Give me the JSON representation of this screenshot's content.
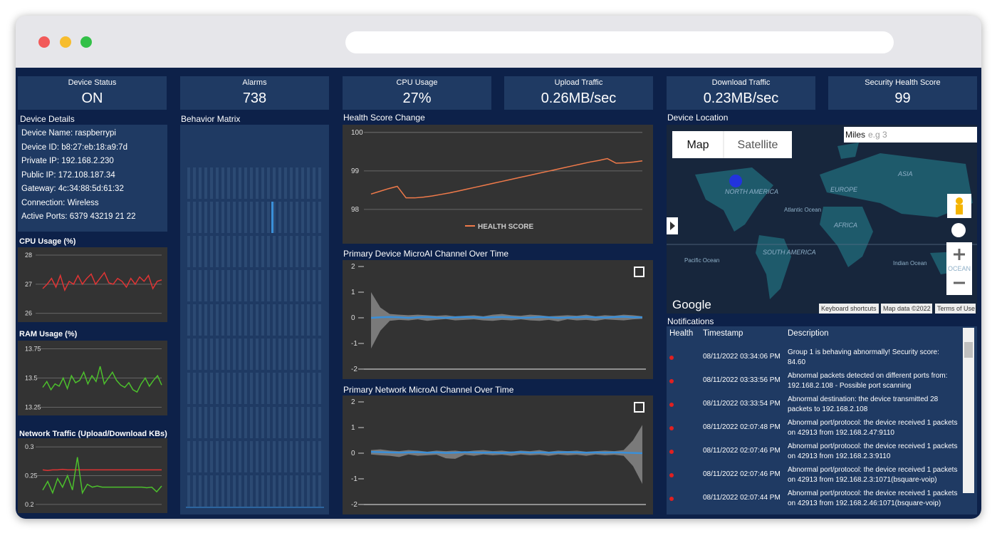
{
  "kpis": [
    {
      "label": "Device Status",
      "value": "ON"
    },
    {
      "label": "Alarms",
      "value": "738"
    },
    {
      "label": "CPU Usage",
      "value": "27%"
    },
    {
      "label": "Upload Traffic",
      "value": "0.26MB/sec"
    },
    {
      "label": "Download Traffic",
      "value": "0.23MB/sec"
    },
    {
      "label": "Security Health Score",
      "value": "99"
    }
  ],
  "device_details": {
    "title": "Device Details",
    "items": [
      "Device Name: raspberrypi",
      "Device ID: b8:27:eb:18:a9:7d",
      "Private IP: 192.168.2.230",
      "Public IP: 172.108.187.34",
      "Gateway: 4c:34:88:5d:61:32",
      "Connection: Wireless",
      "Active Ports: 6379 43219 21 22"
    ]
  },
  "behavior_matrix": {
    "title": "Behavior Matrix"
  },
  "cpu_chart": {
    "type": "line",
    "title": "CPU Usage (%)",
    "ylim": [
      25.7,
      28.27
    ],
    "yticks": [
      26,
      27,
      28
    ],
    "grid": true,
    "series": [
      {
        "color": "#e03434",
        "values": [
          26.85,
          27.0,
          27.2,
          26.9,
          27.3,
          26.8,
          27.1,
          27.0,
          27.3,
          27.0,
          27.2,
          27.35,
          27.0,
          27.2,
          27.4,
          27.05,
          27.0,
          27.2,
          27.1,
          26.9,
          27.2,
          27.0,
          27.25,
          27.1,
          27.3,
          26.85,
          27.1,
          27.15
        ]
      }
    ]
  },
  "ram_chart": {
    "type": "line",
    "title": "RAM Usage (%)",
    "ylim": [
      13.18,
      13.82
    ],
    "yticks": [
      13.25,
      13.5,
      13.75
    ],
    "grid": true,
    "series": [
      {
        "color": "#4cc02c",
        "values": [
          13.42,
          13.47,
          13.4,
          13.45,
          13.43,
          13.5,
          13.41,
          13.52,
          13.46,
          13.48,
          13.55,
          13.45,
          13.52,
          13.47,
          13.6,
          13.45,
          13.5,
          13.55,
          13.48,
          13.44,
          13.42,
          13.46,
          13.4,
          13.38,
          13.45,
          13.5,
          13.43,
          13.48,
          13.52,
          13.44
        ]
      }
    ]
  },
  "network_chart": {
    "type": "line",
    "title": "Network Traffic (Upload/Download KBs)",
    "ylim": [
      0.185,
      0.315
    ],
    "yticks": [
      0.2,
      0.25,
      0.3
    ],
    "grid": true,
    "series": [
      {
        "color": "#e03434",
        "values": [
          0.26,
          0.259,
          0.26,
          0.26,
          0.261,
          0.26,
          0.26,
          0.26,
          0.26,
          0.26,
          0.26,
          0.26,
          0.26,
          0.26,
          0.26,
          0.26,
          0.26,
          0.26,
          0.26,
          0.26,
          0.26,
          0.26,
          0.26,
          0.26,
          0.26
        ]
      },
      {
        "color": "#4cc02c",
        "values": [
          0.225,
          0.24,
          0.22,
          0.245,
          0.23,
          0.25,
          0.225,
          0.282,
          0.22,
          0.235,
          0.23,
          0.232,
          0.23,
          0.23,
          0.23,
          0.23,
          0.23,
          0.23,
          0.23,
          0.23,
          0.23,
          0.229,
          0.23,
          0.222,
          0.232
        ]
      }
    ]
  },
  "health_chart": {
    "type": "line",
    "title": "Health Score Change",
    "ylim": [
      97.11,
      100.2
    ],
    "yticks": [
      98,
      99,
      100
    ],
    "grid": true,
    "series": [
      {
        "name": "HEALTH SCORE",
        "color": "#f07a4a",
        "values": [
          98.4,
          98.47,
          98.54,
          98.6,
          98.3,
          98.3,
          98.32,
          98.35,
          98.39,
          98.43,
          98.48,
          98.53,
          98.58,
          98.63,
          98.68,
          98.73,
          98.78,
          98.83,
          98.88,
          98.93,
          98.98,
          99.03,
          99.08,
          99.13,
          99.18,
          99.23,
          99.27,
          99.32,
          99.2,
          99.21,
          99.23,
          99.26
        ]
      }
    ]
  },
  "microai_device_chart": {
    "type": "band",
    "title": "Primary Device MicroAI Channel Over Time",
    "ylim": [
      -2.39,
      2.25
    ],
    "yticks": [
      2,
      1,
      0,
      -1,
      -2
    ],
    "series": [
      {
        "color": "#3a8fd8",
        "values": [
          0.0,
          0.02,
          0.03,
          0.02,
          0.0,
          0.02,
          0.03,
          0.01,
          0.0,
          0.02,
          0.03,
          0.02,
          0.01,
          0.02,
          0.03,
          0.02,
          0.0,
          0.01,
          0.03,
          0.02,
          0.0,
          0.01,
          0.02,
          0.03,
          0.02,
          0.01,
          0.03,
          0.04,
          0.02,
          0.02
        ]
      }
    ],
    "band": {
      "color": "#8c8c8c",
      "upper": [
        1.0,
        0.4,
        0.15,
        0.12,
        0.1,
        0.12,
        0.1,
        0.08,
        0.1,
        0.06,
        0.08,
        0.1,
        0.06,
        0.12,
        0.15,
        0.1,
        0.08,
        0.12,
        0.1,
        0.06,
        0.08,
        0.1,
        0.08,
        0.12,
        0.06,
        0.1,
        0.08,
        0.12,
        0.1,
        0.06
      ],
      "lower": [
        -1.2,
        -0.5,
        -0.12,
        -0.08,
        -0.1,
        -0.06,
        -0.12,
        -0.08,
        -0.05,
        -0.1,
        -0.08,
        -0.06,
        -0.1,
        -0.12,
        -0.08,
        -0.1,
        -0.06,
        -0.1,
        -0.12,
        -0.08,
        -0.14,
        -0.06,
        -0.1,
        -0.08,
        -0.12,
        -0.06,
        -0.08,
        -0.1,
        -0.06,
        -0.04
      ]
    }
  },
  "microai_network_chart": {
    "type": "band",
    "title": "Primary Network MicroAI Channel Over Time",
    "ylim": [
      -2.39,
      2.25
    ],
    "yticks": [
      2,
      1,
      0,
      -1,
      -2
    ],
    "series": [
      {
        "color": "#3a8fd8",
        "values": [
          0.05,
          0.04,
          0.03,
          0.02,
          0.03,
          0.04,
          0.02,
          0.03,
          0.01,
          0.02,
          0.04,
          0.03,
          0.02,
          0.03,
          0.01,
          0.03,
          0.04,
          0.02,
          0.03,
          0.02,
          0.03,
          0.04,
          0.03,
          0.02,
          0.03,
          0.02,
          0.03,
          0.02,
          0.01,
          0.0
        ]
      }
    ],
    "band": {
      "color": "#8c8c8c",
      "upper": [
        0.12,
        0.15,
        0.1,
        0.08,
        0.12,
        0.1,
        0.06,
        0.1,
        0.08,
        0.1,
        0.06,
        0.1,
        0.12,
        0.08,
        0.1,
        0.06,
        0.1,
        0.08,
        0.12,
        0.06,
        0.1,
        0.08,
        0.1,
        0.06,
        0.08,
        0.1,
        0.08,
        0.12,
        0.5,
        1.1
      ],
      "lower": [
        -0.05,
        -0.08,
        -0.1,
        -0.15,
        -0.05,
        -0.1,
        -0.08,
        -0.06,
        -0.2,
        -0.22,
        -0.06,
        -0.1,
        -0.05,
        -0.08,
        -0.06,
        -0.1,
        -0.05,
        -0.08,
        -0.06,
        -0.1,
        -0.05,
        -0.08,
        -0.06,
        -0.1,
        -0.05,
        -0.08,
        -0.06,
        -0.1,
        -0.5,
        -1.2
      ]
    }
  },
  "device_location": {
    "title": "Device Location",
    "map_button": "Map",
    "satellite_button": "Satellite",
    "miles_label": "Miles",
    "miles_placeholder": "e.g 3",
    "labels": [
      "NORTH AMERICA",
      "EUROPE",
      "ASIA",
      "AFRICA",
      "SOUTH AMERICA",
      "Atlantic Ocean",
      "Pacific Ocean",
      "Indian Ocean",
      "OCEAN"
    ],
    "logo": "Google",
    "footer": [
      "Keyboard shortcuts",
      "Map data ©2022",
      "Terms of Use"
    ]
  },
  "notifications": {
    "title": "Notifications",
    "headers": [
      "Health",
      "Timestamp",
      "Description"
    ],
    "rows": [
      [
        "08/11/2022 03:34:06 PM",
        "Group 1 is behaving abnormally! Security score: 84.60"
      ],
      [
        "08/11/2022 03:33:56 PM",
        "Abnormal packets detected on different ports from: 192.168.2.108 - Possible port scanning"
      ],
      [
        "08/11/2022 03:33:54 PM",
        "Abnormal destination: the device transmitted 28 packets to 192.168.2.108"
      ],
      [
        "08/11/2022 02:07:48 PM",
        "Abnormal port/protocol: the device received 1 packets on 42913 from 192.168.2.47:9110"
      ],
      [
        "08/11/2022 02:07:46 PM",
        "Abnormal port/protocol: the device received 1 packets on 42913 from 192.168.2.3:9110"
      ],
      [
        "08/11/2022 02:07:46 PM",
        "Abnormal port/protocol: the device received 1 packets on 42913 from 192.168.2.3:1071(bsquare-voip)"
      ],
      [
        "08/11/2022 02:07:44 PM",
        "Abnormal port/protocol: the device received 1 packets on 42913 from 192.168.2.46:1071(bsquare-voip)"
      ]
    ]
  }
}
